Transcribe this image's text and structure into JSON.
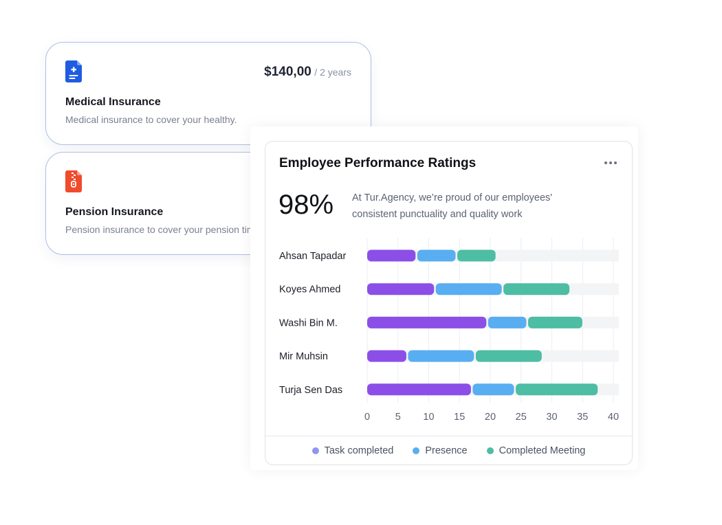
{
  "insurance_cards": [
    {
      "title": "Medical Insurance",
      "description": "Medical insurance to cover your healthy.",
      "price": "$140,00",
      "period": "/ 2 years",
      "icon": "medical-document-icon",
      "icon_color": "#1f5ce0"
    },
    {
      "title": "Pension Insurance",
      "description": "Pension insurance to cover your pension time",
      "price": "$",
      "icon": "zip-document-icon",
      "icon_color": "#f04b2c"
    }
  ],
  "performance": {
    "title": "Employee Performance Ratings",
    "highlight_value": "98%",
    "highlight_text": "At Tur.Agency, we’re proud of our employees' consistent punctuality and quality work",
    "menu_icon": "more-horizontal-icon"
  },
  "chart_data": {
    "type": "bar",
    "orientation": "horizontal",
    "stacked": true,
    "categories": [
      "Ahsan Tapadar",
      "Koyes Ahmed",
      "Washi Bin M.",
      "Mir Muhsin",
      "Turja Sen Das"
    ],
    "series": [
      {
        "name": "Task completed",
        "values": [
          8,
          11,
          19.5,
          6.5,
          17
        ],
        "color": "#8b4fe8"
      },
      {
        "name": "Presence",
        "values": [
          6.5,
          11,
          6.5,
          11,
          7
        ],
        "color": "#58aef0"
      },
      {
        "name": "Completed Meeting",
        "values": [
          6.5,
          11,
          9.1,
          11,
          13.6
        ],
        "color": "#4dbda3"
      }
    ],
    "x_ticks": [
      0,
      5,
      10,
      15,
      20,
      25,
      30,
      35,
      40
    ],
    "xlim": [
      0,
      40
    ],
    "grid": true,
    "legend_position": "bottom",
    "track_color": "#f3f4f6"
  }
}
